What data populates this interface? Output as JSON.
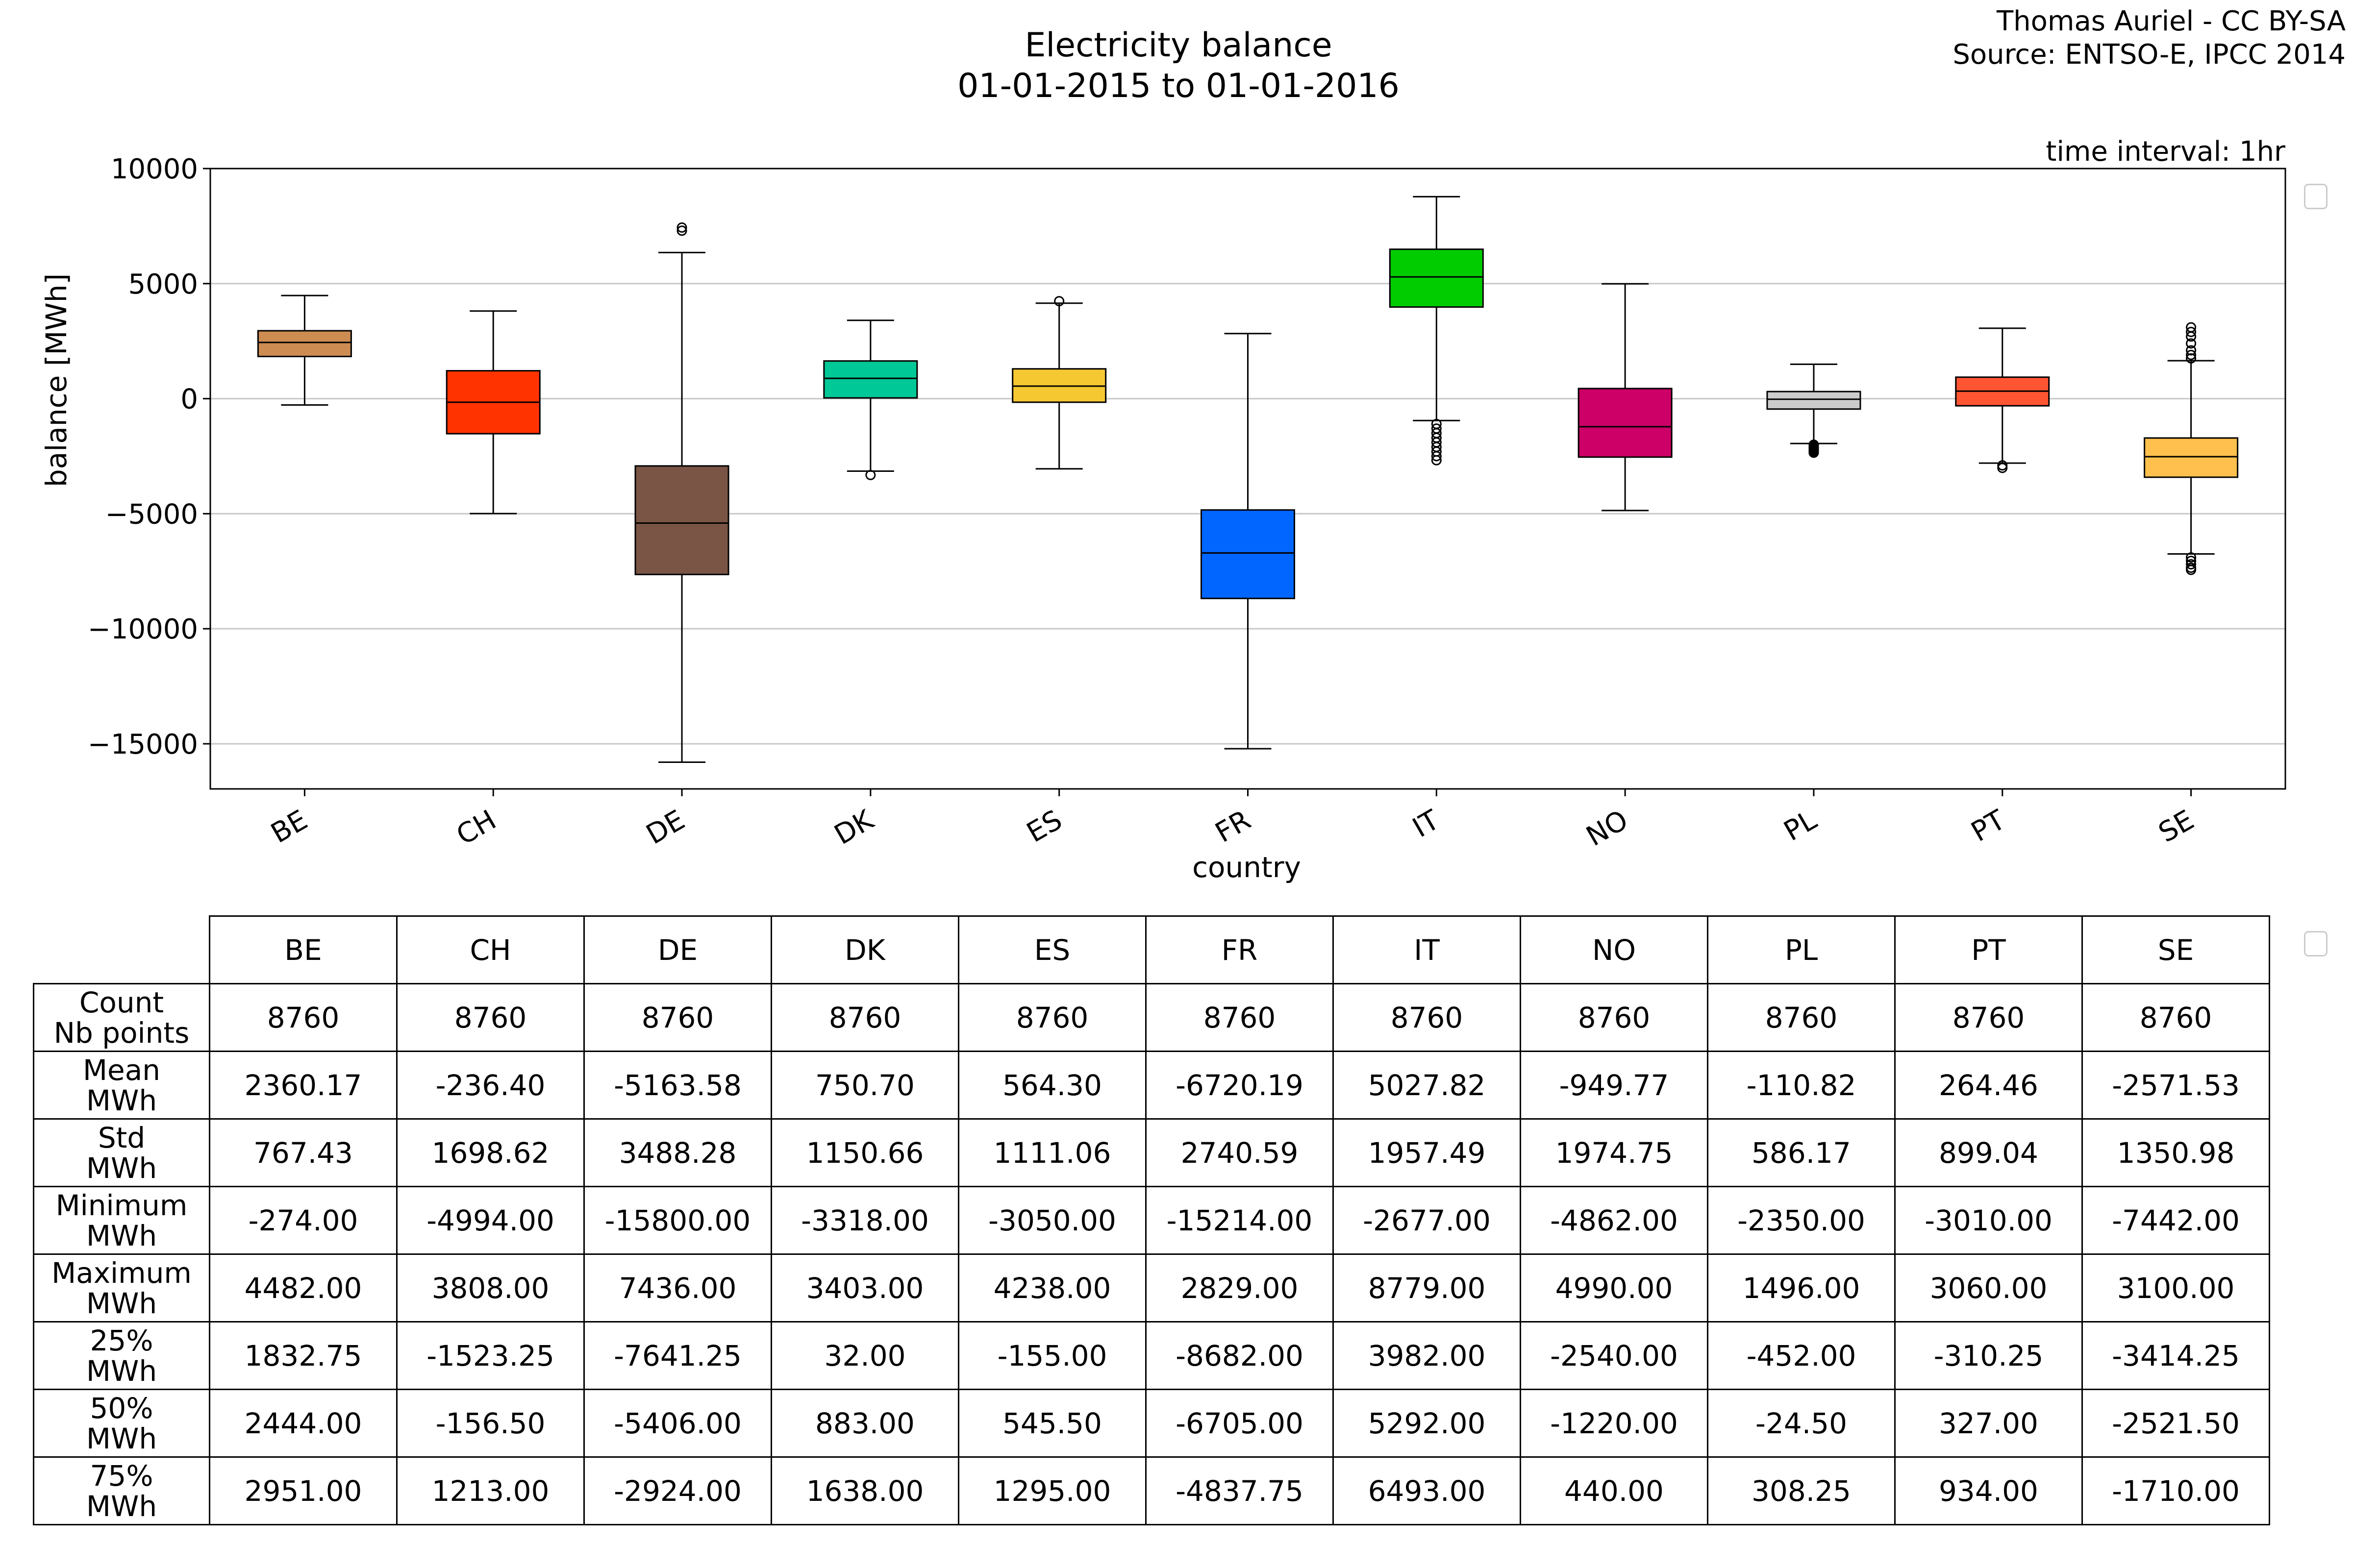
{
  "header": {
    "credit_line1": "Thomas Auriel - CC BY-SA",
    "credit_line2": "Source: ENTSO-E, IPCC 2014",
    "time_interval": "time interval: 1hr"
  },
  "chart_data": {
    "type": "box",
    "title": "Electricity balance",
    "subtitle": "01-01-2015 to 01-01-2016",
    "xlabel": "country",
    "ylabel": "balance [MWh]",
    "ylim": [
      -16960,
      10000
    ],
    "yticks": [
      10000,
      5000,
      0,
      -5000,
      -10000,
      -15000
    ],
    "ytick_labels": [
      "10000",
      "5000",
      "0",
      "−5000",
      "−10000",
      "−15000"
    ],
    "grid": "horizontal",
    "categories": [
      "BE",
      "CH",
      "DE",
      "DK",
      "ES",
      "FR",
      "IT",
      "NO",
      "PL",
      "PT",
      "SE"
    ],
    "colors": [
      "#cd8c52",
      "#ff3300",
      "#7a5545",
      "#00c896",
      "#f5c832",
      "#0066ff",
      "#00cc00",
      "#cc0066",
      "#cccccc",
      "#ff5533",
      "#ffc04d"
    ],
    "boxes": [
      {
        "q1": 1832.75,
        "median": 2444.0,
        "q3": 2951.0,
        "whislo": -274,
        "whishi": 4482,
        "fliers": []
      },
      {
        "q1": -1523.25,
        "median": -156.5,
        "q3": 1213.0,
        "whislo": -4994,
        "whishi": 3808,
        "fliers": []
      },
      {
        "q1": -7641.25,
        "median": -5406.0,
        "q3": -2924.0,
        "whislo": -15800,
        "whishi": 6350,
        "fliers": [
          7300,
          7436
        ]
      },
      {
        "q1": 32.0,
        "median": 883.0,
        "q3": 1638.0,
        "whislo": -3150,
        "whishi": 3403,
        "fliers": [
          -3318
        ]
      },
      {
        "q1": -155.0,
        "median": 545.5,
        "q3": 1295.0,
        "whislo": -3050,
        "whishi": 4150,
        "fliers": [
          4238
        ]
      },
      {
        "q1": -8682.0,
        "median": -6705.0,
        "q3": -4837.75,
        "whislo": -15214,
        "whishi": 2829,
        "fliers": []
      },
      {
        "q1": 3982.0,
        "median": 5292.0,
        "q3": 6493.0,
        "whislo": -950,
        "whishi": 8779,
        "fliers": [
          -1100,
          -1300,
          -1500,
          -1700,
          -1900,
          -2100,
          -2300,
          -2500,
          -2677
        ]
      },
      {
        "q1": -2540.0,
        "median": -1220.0,
        "q3": 440.0,
        "whislo": -4862,
        "whishi": 4990,
        "fliers": []
      },
      {
        "q1": -452.0,
        "median": -24.5,
        "q3": 308.25,
        "whislo": -1950,
        "whishi": 1496,
        "fliers": [
          -2000,
          -2050,
          -2100,
          -2150,
          -2200,
          -2250,
          -2300,
          -2350
        ]
      },
      {
        "q1": -310.25,
        "median": 327.0,
        "q3": 934.0,
        "whislo": -2800,
        "whishi": 3060,
        "fliers": [
          -2900,
          -3010
        ]
      },
      {
        "q1": -3414.25,
        "median": -2521.5,
        "q3": -1710.0,
        "whislo": -6750,
        "whishi": 1650,
        "fliers": [
          1750,
          1900,
          2100,
          2400,
          2700,
          2900,
          3100,
          -6900,
          -7050,
          -7200,
          -7350,
          -7442
        ]
      }
    ]
  },
  "table": {
    "columns": [
      "BE",
      "CH",
      "DE",
      "DK",
      "ES",
      "FR",
      "IT",
      "NO",
      "PL",
      "PT",
      "SE"
    ],
    "rows": [
      {
        "label1": "Count",
        "label2": "Nb points",
        "values": [
          "8760",
          "8760",
          "8760",
          "8760",
          "8760",
          "8760",
          "8760",
          "8760",
          "8760",
          "8760",
          "8760"
        ]
      },
      {
        "label1": "Mean",
        "label2": "MWh",
        "values": [
          "2360.17",
          "-236.40",
          "-5163.58",
          "750.70",
          "564.30",
          "-6720.19",
          "5027.82",
          "-949.77",
          "-110.82",
          "264.46",
          "-2571.53"
        ]
      },
      {
        "label1": "Std",
        "label2": "MWh",
        "values": [
          "767.43",
          "1698.62",
          "3488.28",
          "1150.66",
          "1111.06",
          "2740.59",
          "1957.49",
          "1974.75",
          "586.17",
          "899.04",
          "1350.98"
        ]
      },
      {
        "label1": "Minimum",
        "label2": "MWh",
        "values": [
          "-274.00",
          "-4994.00",
          "-15800.00",
          "-3318.00",
          "-3050.00",
          "-15214.00",
          "-2677.00",
          "-4862.00",
          "-2350.00",
          "-3010.00",
          "-7442.00"
        ]
      },
      {
        "label1": "Maximum",
        "label2": "MWh",
        "values": [
          "4482.00",
          "3808.00",
          "7436.00",
          "3403.00",
          "4238.00",
          "2829.00",
          "8779.00",
          "4990.00",
          "1496.00",
          "3060.00",
          "3100.00"
        ]
      },
      {
        "label1": "25%",
        "label2": "MWh",
        "values": [
          "1832.75",
          "-1523.25",
          "-7641.25",
          "32.00",
          "-155.00",
          "-8682.00",
          "3982.00",
          "-2540.00",
          "-452.00",
          "-310.25",
          "-3414.25"
        ]
      },
      {
        "label1": "50%",
        "label2": "MWh",
        "values": [
          "2444.00",
          "-156.50",
          "-5406.00",
          "883.00",
          "545.50",
          "-6705.00",
          "5292.00",
          "-1220.00",
          "-24.50",
          "327.00",
          "-2521.50"
        ]
      },
      {
        "label1": "75%",
        "label2": "MWh",
        "values": [
          "2951.00",
          "1213.00",
          "-2924.00",
          "1638.00",
          "1295.00",
          "-4837.75",
          "6493.00",
          "440.00",
          "308.25",
          "934.00",
          "-1710.00"
        ]
      }
    ]
  }
}
